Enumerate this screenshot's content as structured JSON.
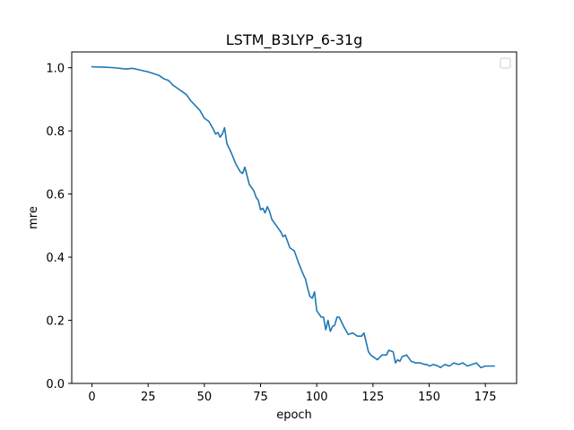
{
  "chart_data": {
    "type": "line",
    "title": "LSTM_B3LYP_6-31g",
    "xlabel": "epoch",
    "ylabel": "mre",
    "xlim": [
      -9,
      188.9
    ],
    "ylim": [
      0,
      1.05
    ],
    "xticks": [
      0,
      25,
      50,
      75,
      100,
      125,
      150,
      175
    ],
    "yticks": [
      0.0,
      0.2,
      0.4,
      0.6,
      0.8,
      1.0
    ],
    "xtick_labels": [
      "0",
      "25",
      "50",
      "75",
      "100",
      "125",
      "150",
      "175"
    ],
    "ytick_labels": [
      "0.0",
      "0.2",
      "0.4",
      "0.6",
      "0.8",
      "1.0"
    ],
    "grid": false,
    "legend": "top-right",
    "series": [
      {
        "color": "#1f77b4",
        "x": [
          0,
          5,
          10,
          15,
          18,
          20,
          23,
          25,
          28,
          30,
          32,
          34,
          36,
          38,
          40,
          42,
          44,
          46,
          48,
          50,
          52,
          54,
          55,
          56,
          57,
          58,
          59,
          60,
          62,
          64,
          66,
          67,
          68,
          70,
          72,
          73,
          74,
          75,
          76,
          77,
          78,
          79,
          80,
          82,
          84,
          85,
          86,
          88,
          90,
          92,
          94,
          95,
          96,
          97,
          98,
          99,
          100,
          102,
          103,
          104,
          105,
          106,
          107,
          108,
          109,
          110,
          112,
          114,
          116,
          118,
          120,
          121,
          122,
          123,
          124,
          125,
          127,
          129,
          131,
          132,
          134,
          135,
          136,
          137,
          138,
          140,
          142,
          144,
          146,
          148,
          149,
          150,
          152,
          154,
          155,
          157,
          159,
          161,
          163,
          165,
          167,
          169,
          171,
          173,
          175,
          177,
          179
        ],
        "y": [
          1.003,
          1.002,
          1.0,
          0.996,
          0.998,
          0.995,
          0.99,
          0.987,
          0.98,
          0.975,
          0.965,
          0.96,
          0.945,
          0.935,
          0.925,
          0.915,
          0.895,
          0.88,
          0.865,
          0.84,
          0.83,
          0.805,
          0.79,
          0.795,
          0.78,
          0.79,
          0.81,
          0.76,
          0.73,
          0.695,
          0.67,
          0.665,
          0.685,
          0.63,
          0.61,
          0.59,
          0.58,
          0.55,
          0.555,
          0.54,
          0.56,
          0.545,
          0.52,
          0.5,
          0.48,
          0.465,
          0.47,
          0.43,
          0.42,
          0.38,
          0.345,
          0.33,
          0.3,
          0.275,
          0.27,
          0.29,
          0.23,
          0.21,
          0.21,
          0.17,
          0.2,
          0.165,
          0.18,
          0.185,
          0.21,
          0.21,
          0.18,
          0.155,
          0.16,
          0.15,
          0.15,
          0.16,
          0.13,
          0.1,
          0.09,
          0.085,
          0.075,
          0.09,
          0.09,
          0.105,
          0.1,
          0.065,
          0.075,
          0.07,
          0.085,
          0.09,
          0.07,
          0.065,
          0.065,
          0.06,
          0.06,
          0.055,
          0.06,
          0.055,
          0.05,
          0.06,
          0.055,
          0.065,
          0.06,
          0.065,
          0.055,
          0.06,
          0.065,
          0.05,
          0.055,
          0.055,
          0.055
        ]
      }
    ]
  }
}
